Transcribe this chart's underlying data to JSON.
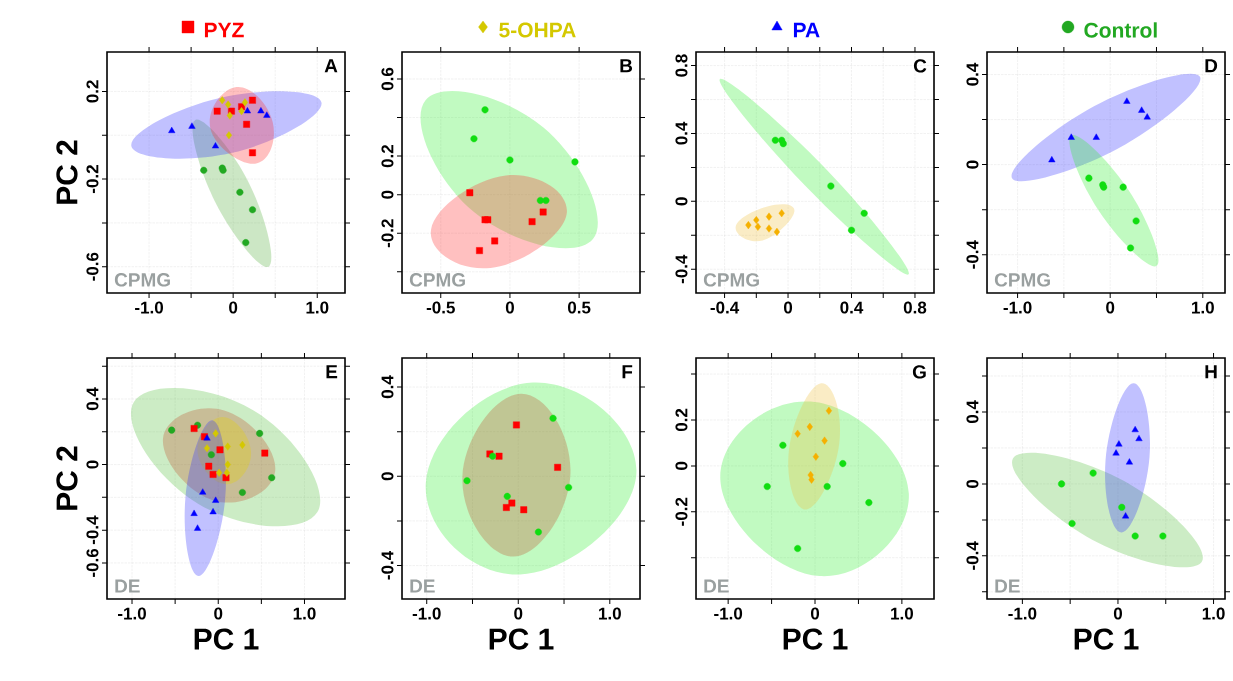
{
  "chart_data": [
    {
      "type": "scatter",
      "xlim": [
        -1.5,
        1.33
      ],
      "ylim": [
        -0.72,
        0.38
      ],
      "xticks": [
        {
          "value": -1,
          "label": "-1.0"
        },
        {
          "value": -0.5,
          "label": null
        },
        0,
        {
          "value": 0.5,
          "label": null
        },
        {
          "value": 1,
          "label": "1.0"
        }
      ],
      "yticks": [
        0.2,
        {
          "value": 0,
          "label": null
        },
        -0.2,
        {
          "value": -0.4,
          "label": null
        },
        -0.6
      ],
      "grid": true,
      "legend": "top",
      "ylabel": "PC 2",
      "annotations": [
        "A",
        "CPMG"
      ],
      "series": [
        {
          "type": "area",
          "color": "#55b040",
          "x": [
            -0.45,
            -0.22,
            0.42,
            0.19
          ],
          "values": [
            0.07,
            -0.3,
            -0.6,
            -0.22
          ]
        },
        {
          "type": "area",
          "color": "#3333ff",
          "x": [
            -1.21,
            -0.01,
            1.05,
            -0.16
          ],
          "values": [
            -0.05,
            -0.08,
            0.15,
            0.17
          ]
        },
        {
          "type": "area",
          "color": "#ff3030",
          "x": [
            0.04,
            -0.27,
            0.26,
            0.47
          ],
          "values": [
            0.22,
            0.03,
            -0.13,
            0.06
          ]
        },
        {
          "name": "PYZ",
          "marker": "square",
          "color": "#ff0000",
          "x": [
            -0.19,
            -0.02,
            0.1,
            0.23,
            0.16,
            0.23
          ],
          "values": [
            0.11,
            0.11,
            0.13,
            0.16,
            0.05,
            -0.08
          ]
        },
        {
          "name": "5-OHPA",
          "marker": "diamond",
          "color": "#d4c800",
          "x": [
            -0.13,
            -0.06,
            -0.04,
            0.1,
            0.14,
            -0.05
          ],
          "values": [
            0.16,
            0.14,
            0.09,
            0.11,
            0.15,
            0.0
          ]
        },
        {
          "name": "PA",
          "marker": "triangle",
          "color": "#0000ff",
          "x": [
            -0.73,
            -0.49,
            -0.21,
            0.17,
            0.33,
            0.4
          ],
          "values": [
            0.02,
            0.04,
            -0.05,
            0.11,
            0.11,
            0.09
          ]
        },
        {
          "name": "Control",
          "marker": "circle",
          "color": "#22a822",
          "x": [
            -0.35,
            -0.13,
            -0.12,
            0.08,
            0.23,
            0.15
          ],
          "values": [
            -0.16,
            -0.15,
            -0.16,
            -0.26,
            -0.34,
            -0.49
          ]
        }
      ]
    },
    {
      "type": "scatter",
      "xlim": [
        -0.78,
        0.94
      ],
      "ylim": [
        -0.51,
        0.74
      ],
      "xticks": [
        -0.5,
        0,
        0.5
      ],
      "yticks": [
        0.6,
        {
          "value": 0.4,
          "label": null
        },
        0.2,
        0,
        -0.2,
        {
          "value": -0.4,
          "label": null
        }
      ],
      "grid": true,
      "annotations": [
        "B",
        "CPMG"
      ],
      "series": [
        {
          "type": "area",
          "color": "#33ee33",
          "x": [
            -0.61,
            -0.26,
            0.6,
            0.24
          ],
          "values": [
            0.49,
            -0.09,
            -0.23,
            0.35
          ]
        },
        {
          "type": "area",
          "color": "#ff3030",
          "x": [
            -0.57,
            -0.03,
            0.41,
            -0.14
          ],
          "values": [
            -0.18,
            0.1,
            -0.1,
            -0.38
          ]
        },
        {
          "marker": "square",
          "color": "#ff0000",
          "x": [
            -0.29,
            -0.18,
            -0.16,
            -0.11,
            -0.22,
            0.24,
            0.16
          ],
          "values": [
            0.01,
            -0.13,
            -0.13,
            -0.24,
            -0.29,
            -0.09,
            -0.14
          ]
        },
        {
          "marker": "circle",
          "color": "#11dd11",
          "x": [
            -0.18,
            -0.26,
            0.0,
            0.22,
            0.26,
            0.47
          ],
          "values": [
            0.44,
            0.29,
            0.18,
            -0.03,
            -0.03,
            0.17
          ]
        }
      ]
    },
    {
      "type": "scatter",
      "xlim": [
        -0.58,
        0.92
      ],
      "ylim": [
        -0.54,
        0.88
      ],
      "xticks": [
        -0.4,
        {
          "value": -0.2,
          "label": null
        },
        0,
        {
          "value": 0.2,
          "label": null
        },
        0.4,
        {
          "value": 0.6,
          "label": null
        },
        0.8
      ],
      "yticks": [
        0.8,
        {
          "value": 0.6,
          "label": null
        },
        0.4,
        {
          "value": 0.2,
          "label": null
        },
        0,
        {
          "value": -0.2,
          "label": null
        },
        -0.4
      ],
      "grid": true,
      "annotations": [
        "C",
        "CPMG"
      ],
      "series": [
        {
          "type": "area",
          "color": "#33ee33",
          "x": [
            -0.43,
            0.11,
            0.76,
            0.23
          ],
          "values": [
            0.72,
            0.09,
            -0.43,
            0.2
          ]
        },
        {
          "type": "area",
          "color": "#f0c040",
          "x": [
            -0.33,
            -0.13,
            0.04,
            -0.16
          ],
          "values": [
            -0.15,
            -0.03,
            -0.06,
            -0.23
          ]
        },
        {
          "marker": "diamond",
          "color": "#f5b000",
          "x": [
            -0.25,
            -0.2,
            -0.19,
            -0.12,
            -0.12,
            -0.07,
            -0.04
          ],
          "values": [
            -0.14,
            -0.11,
            -0.15,
            -0.09,
            -0.16,
            -0.18,
            -0.07
          ]
        },
        {
          "marker": "circle",
          "color": "#11dd11",
          "x": [
            -0.08,
            -0.04,
            -0.03,
            0.27,
            0.48,
            0.4
          ],
          "values": [
            0.36,
            0.36,
            0.34,
            0.09,
            -0.07,
            -0.17
          ]
        }
      ]
    },
    {
      "type": "scatter",
      "xlim": [
        -1.33,
        1.24
      ],
      "ylim": [
        -0.57,
        0.5
      ],
      "xticks": [
        {
          "value": -1,
          "label": "-1.0"
        },
        {
          "value": -0.5,
          "label": null
        },
        0,
        {
          "value": 0.5,
          "label": null
        },
        {
          "value": 1,
          "label": "1.0"
        }
      ],
      "yticks": [
        0.4,
        {
          "value": 0.2,
          "label": null
        },
        0,
        {
          "value": -0.2,
          "label": null
        },
        -0.4
      ],
      "grid": true,
      "annotations": [
        "D",
        "CPMG"
      ],
      "series": [
        {
          "type": "area",
          "color": "#3333ff",
          "x": [
            -1.06,
            0.08,
            0.97,
            -0.17
          ],
          "values": [
            -0.06,
            0.07,
            0.39,
            0.26
          ]
        },
        {
          "type": "area",
          "color": "#33ee33",
          "x": [
            -0.42,
            -0.13,
            0.5,
            0.21
          ],
          "values": [
            0.13,
            -0.2,
            -0.45,
            -0.12
          ]
        },
        {
          "marker": "triangle",
          "color": "#0000ff",
          "x": [
            -0.63,
            -0.42,
            -0.15,
            0.18,
            0.34,
            0.4
          ],
          "values": [
            0.02,
            0.12,
            0.12,
            0.28,
            0.24,
            0.21
          ]
        },
        {
          "marker": "circle",
          "color": "#11dd11",
          "x": [
            -0.23,
            -0.08,
            -0.07,
            0.14,
            0.28,
            0.22
          ],
          "values": [
            -0.06,
            -0.09,
            -0.1,
            -0.1,
            -0.25,
            -0.37
          ]
        }
      ]
    },
    {
      "type": "scatter",
      "xlim": [
        -1.29,
        1.47
      ],
      "ylim": [
        -0.82,
        0.65
      ],
      "xticks": [
        {
          "value": -1,
          "label": "-1.0"
        },
        {
          "value": -0.5,
          "label": null
        },
        0,
        {
          "value": 0.5,
          "label": null
        },
        {
          "value": 1,
          "label": "1.0"
        }
      ],
      "yticks": [
        {
          "value": 0.6,
          "label": null
        },
        0.4,
        {
          "value": 0.2,
          "label": null
        },
        0,
        {
          "value": -0.2,
          "label": null
        },
        -0.4,
        -0.6
      ],
      "grid": true,
      "xlabel": "PC 1",
      "ylabel": "PC 2",
      "annotations": [
        "E",
        "DE"
      ],
      "series": [
        {
          "type": "area",
          "color": "#55c040",
          "x": [
            -0.98,
            -0.23,
            1.15,
            0.41
          ],
          "values": [
            0.38,
            -0.24,
            -0.29,
            0.33
          ]
        },
        {
          "type": "area",
          "color": "#c05030",
          "x": [
            -0.64,
            -0.05,
            0.66,
            0.07
          ],
          "values": [
            0.16,
            -0.22,
            -0.04,
            0.33
          ]
        },
        {
          "type": "area",
          "color": "#e8d000",
          "x": [
            0.05,
            -0.24,
            0.1,
            0.38
          ],
          "values": [
            0.29,
            0.08,
            -0.12,
            0.08
          ]
        },
        {
          "type": "area",
          "color": "#3333ff",
          "x": [
            -0.07,
            -0.38,
            -0.23,
            0.08
          ],
          "values": [
            0.27,
            -0.2,
            -0.68,
            -0.21
          ]
        },
        {
          "marker": "circle",
          "color": "#22a822",
          "x": [
            -0.54,
            -0.24,
            -0.08,
            0.48,
            0.62,
            0.28
          ],
          "values": [
            0.21,
            0.24,
            0.06,
            0.19,
            -0.08,
            -0.17
          ]
        },
        {
          "marker": "square",
          "color": "#ff0000",
          "x": [
            -0.28,
            -0.16,
            0.02,
            0.54,
            -0.11,
            -0.06,
            0.09
          ],
          "values": [
            0.22,
            0.17,
            0.09,
            0.07,
            -0.01,
            -0.06,
            -0.08
          ]
        },
        {
          "marker": "diamond",
          "color": "#d4c800",
          "x": [
            -0.03,
            -0.13,
            0.11,
            0.28,
            0.11,
            0.01,
            0.1
          ],
          "values": [
            0.19,
            0.1,
            0.11,
            0.12,
            0.0,
            -0.05,
            -0.05
          ]
        },
        {
          "marker": "triangle",
          "color": "#0000ff",
          "x": [
            -0.13,
            -0.18,
            -0.03,
            -0.06,
            -0.28,
            -0.24
          ],
          "values": [
            0.16,
            -0.17,
            -0.22,
            -0.29,
            -0.3,
            -0.39
          ]
        }
      ]
    },
    {
      "type": "scatter",
      "xlim": [
        -1.27,
        1.33
      ],
      "ylim": [
        -0.55,
        0.53
      ],
      "xticks": [
        {
          "value": -1,
          "label": "-1.0"
        },
        {
          "value": -0.5,
          "label": null
        },
        0,
        {
          "value": 0.5,
          "label": null
        },
        {
          "value": 1,
          "label": "1.0"
        }
      ],
      "yticks": [
        0.4,
        {
          "value": 0.2,
          "label": null
        },
        0,
        {
          "value": -0.2,
          "label": null
        },
        -0.4
      ],
      "grid": true,
      "xlabel": "PC 1",
      "annotations": [
        "F",
        "DE"
      ],
      "series": [
        {
          "type": "area",
          "color": "#33ee33",
          "x": [
            -1.01,
            0.02,
            1.29,
            0.16
          ],
          "values": [
            -0.03,
            -0.44,
            0.01,
            0.42
          ]
        },
        {
          "type": "area",
          "color": "#c05030",
          "x": [
            0.03,
            -0.61,
            -0.05,
            0.57
          ],
          "values": [
            0.37,
            0.0,
            -0.36,
            0.01
          ]
        },
        {
          "marker": "square",
          "color": "#ff0000",
          "x": [
            -0.02,
            -0.31,
            -0.21,
            0.43,
            -0.07,
            -0.13,
            0.06
          ],
          "values": [
            0.23,
            0.1,
            0.09,
            0.04,
            -0.12,
            -0.14,
            -0.15
          ]
        },
        {
          "marker": "circle",
          "color": "#11dd11",
          "x": [
            0.38,
            -0.28,
            -0.56,
            -0.12,
            0.22,
            0.55
          ],
          "values": [
            0.26,
            0.09,
            -0.02,
            -0.09,
            -0.25,
            -0.05
          ]
        }
      ]
    },
    {
      "type": "scatter",
      "xlim": [
        -1.37,
        1.37
      ],
      "ylim": [
        -0.58,
        0.47
      ],
      "xticks": [
        {
          "value": -1,
          "label": "-1.0"
        },
        {
          "value": -0.5,
          "label": null
        },
        0,
        {
          "value": 0.5,
          "label": null
        },
        {
          "value": 1,
          "label": "1.0"
        }
      ],
      "yticks": [
        {
          "value": 0.4,
          "label": null
        },
        0.2,
        0,
        -0.2,
        {
          "value": -0.4,
          "label": null
        }
      ],
      "grid": true,
      "xlabel": "PC 1",
      "annotations": [
        "G",
        "DE"
      ],
      "series": [
        {
          "type": "area",
          "color": "#33ee33",
          "x": [
            -1.09,
            0.05,
            1.08,
            -0.05
          ],
          "values": [
            -0.06,
            -0.48,
            -0.12,
            0.28
          ]
        },
        {
          "type": "area",
          "color": "#f0c040",
          "x": [
            0.07,
            -0.3,
            -0.1,
            0.28
          ],
          "values": [
            0.36,
            0.07,
            -0.19,
            0.1
          ]
        },
        {
          "marker": "diamond",
          "color": "#f5b000",
          "x": [
            0.16,
            -0.2,
            -0.06,
            0.11,
            0.01,
            -0.05,
            -0.04
          ],
          "values": [
            0.24,
            0.14,
            0.17,
            0.11,
            0.04,
            -0.04,
            -0.06
          ]
        },
        {
          "marker": "circle",
          "color": "#11dd11",
          "x": [
            -0.37,
            -0.55,
            0.32,
            0.14,
            0.62,
            -0.2
          ],
          "values": [
            0.09,
            -0.09,
            0.01,
            -0.09,
            -0.16,
            -0.36
          ]
        }
      ]
    },
    {
      "type": "scatter",
      "xlim": [
        -1.37,
        1.12
      ],
      "ylim": [
        -0.64,
        0.7
      ],
      "xticks": [
        {
          "value": -1,
          "label": "-1.0"
        },
        {
          "value": -0.5,
          "label": null
        },
        0,
        {
          "value": 0.5,
          "label": null
        },
        {
          "value": 1,
          "label": "1.0"
        }
      ],
      "yticks": [
        {
          "value": 0.6,
          "label": null
        },
        0.4,
        {
          "value": 0.2,
          "label": null
        },
        0,
        {
          "value": -0.2,
          "label": null
        },
        -0.4,
        {
          "value": -0.6,
          "label": null
        }
      ],
      "grid": true,
      "xlabel": "PC 1",
      "annotations": [
        "H",
        "DE"
      ],
      "series": [
        {
          "type": "area",
          "color": "#55c040",
          "x": [
            -1.1,
            -0.27,
            0.88,
            0.05
          ],
          "values": [
            0.14,
            -0.31,
            -0.43,
            0.02
          ]
        },
        {
          "type": "area",
          "color": "#3333ff",
          "x": [
            0.16,
            -0.13,
            0.04,
            0.33
          ],
          "values": [
            0.56,
            0.13,
            -0.27,
            0.15
          ]
        },
        {
          "marker": "triangle",
          "color": "#0000ff",
          "x": [
            0.18,
            0.22,
            0.01,
            -0.02,
            0.12,
            0.08
          ],
          "values": [
            0.3,
            0.25,
            0.22,
            0.17,
            0.12,
            -0.18
          ]
        },
        {
          "marker": "circle",
          "color": "#11dd11",
          "x": [
            -0.59,
            -0.26,
            -0.48,
            0.04,
            0.18,
            0.47
          ],
          "values": [
            0.0,
            0.06,
            -0.22,
            -0.13,
            -0.29,
            -0.29
          ]
        }
      ]
    }
  ]
}
